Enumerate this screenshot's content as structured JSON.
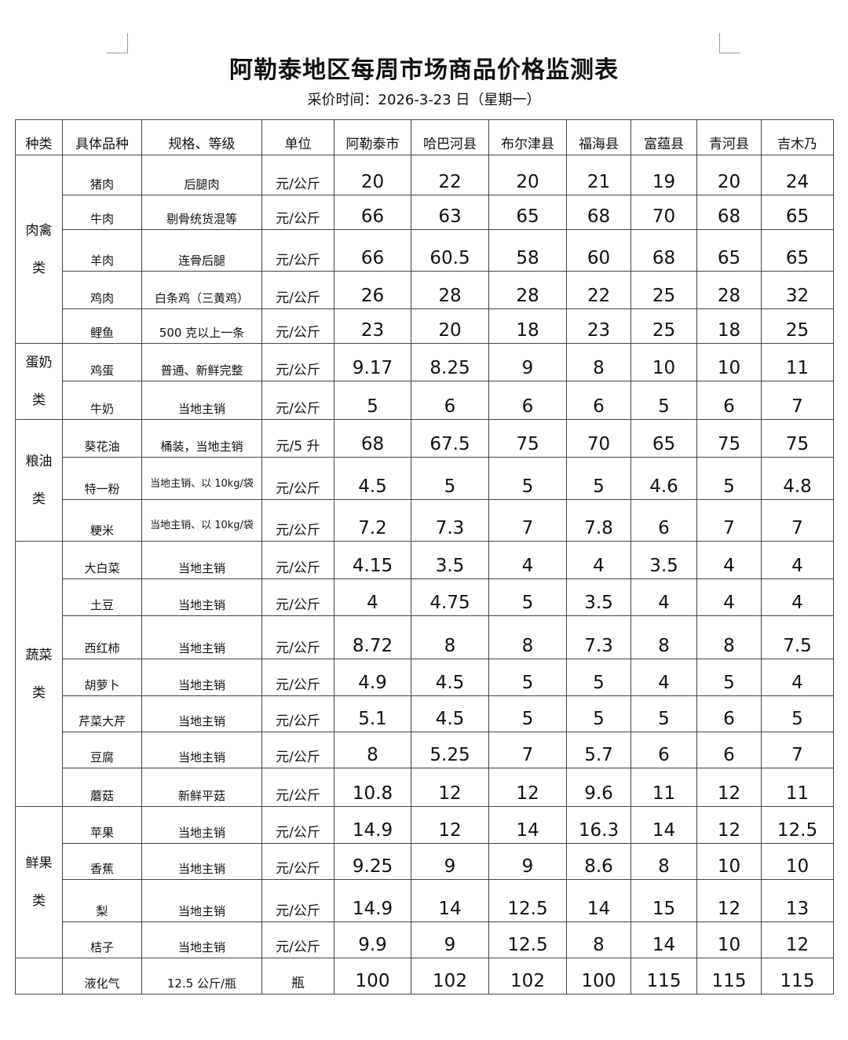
{
  "title": "阿勒泰地区每周市场商品价格监测表",
  "subtitle": "采价时间：2026-3-23 日（星期一）",
  "headers": [
    "种类",
    "具体品种",
    "规格、等级",
    "单位",
    "阿勒泰市",
    "哈巴河县",
    "布尔津县",
    "福海县",
    "富蕴县",
    "青河县",
    "吉木乃"
  ],
  "categories": [
    {
      "label": "肉禽类",
      "rows": [
        {
          "item": "猪肉",
          "spec": "后腿肉",
          "unit": "元/公斤",
          "prices": [
            "20",
            "22",
            "20",
            "21",
            "19",
            "20",
            "24"
          ]
        },
        {
          "item": "牛肉",
          "spec": "剔骨统货混等",
          "unit": "元/公斤",
          "prices": [
            "66",
            "63",
            "65",
            "68",
            "70",
            "68",
            "65"
          ]
        },
        {
          "item": "羊肉",
          "spec": "连骨后腿",
          "unit": "元/公斤",
          "prices": [
            "66",
            "60.5",
            "58",
            "60",
            "68",
            "65",
            "65"
          ]
        },
        {
          "item": "鸡肉",
          "spec": "白条鸡（三黄鸡）",
          "unit": "元/公斤",
          "prices": [
            "26",
            "28",
            "28",
            "22",
            "25",
            "28",
            "32"
          ]
        },
        {
          "item": "鲤鱼",
          "spec": "500 克以上一条",
          "unit": "元/公斤",
          "prices": [
            "23",
            "20",
            "18",
            "23",
            "25",
            "18",
            "25"
          ]
        }
      ]
    },
    {
      "label": "蛋奶类",
      "rows": [
        {
          "item": "鸡蛋",
          "spec": "普通、新鲜完整",
          "unit": "元/公斤",
          "prices": [
            "9.17",
            "8.25",
            "9",
            "8",
            "10",
            "10",
            "11"
          ]
        },
        {
          "item": "牛奶",
          "spec": "当地主销",
          "unit": "元/公斤",
          "prices": [
            "5",
            "6",
            "6",
            "6",
            "5",
            "6",
            "7"
          ]
        }
      ]
    },
    {
      "label": "粮油类",
      "rows": [
        {
          "item": "葵花油",
          "spec": "桶装，当地主销",
          "unit": "元/5 升",
          "prices": [
            "68",
            "67.5",
            "75",
            "70",
            "65",
            "75",
            "75"
          ]
        },
        {
          "item": "特一粉",
          "spec": "当地主销、以 10kg/袋",
          "unit": "元/公斤",
          "prices": [
            "4.5",
            "5",
            "5",
            "5",
            "4.6",
            "5",
            "4.8"
          ]
        },
        {
          "item": "粳米",
          "spec": "当地主销、以 10kg/袋",
          "unit": "元/公斤",
          "prices": [
            "7.2",
            "7.3",
            "7",
            "7.8",
            "6",
            "7",
            "7"
          ]
        }
      ]
    },
    {
      "label": "蔬菜类",
      "rows": [
        {
          "item": "大白菜",
          "spec": "当地主销",
          "unit": "元/公斤",
          "prices": [
            "4.15",
            "3.5",
            "4",
            "4",
            "3.5",
            "4",
            "4"
          ]
        },
        {
          "item": "土豆",
          "spec": "当地主销",
          "unit": "元/公斤",
          "prices": [
            "4",
            "4.75",
            "5",
            "3.5",
            "4",
            "4",
            "4"
          ]
        },
        {
          "item": "西红柿",
          "spec": "当地主销",
          "unit": "元/公斤",
          "prices": [
            "8.72",
            "8",
            "8",
            "7.3",
            "8",
            "8",
            "7.5"
          ]
        },
        {
          "item": "胡萝卜",
          "spec": "当地主销",
          "unit": "元/公斤",
          "prices": [
            "4.9",
            "4.5",
            "5",
            "5",
            "4",
            "5",
            "4"
          ]
        },
        {
          "item": "芹菜大芹",
          "spec": "当地主销",
          "unit": "元/公斤",
          "prices": [
            "5.1",
            "4.5",
            "5",
            "5",
            "5",
            "6",
            "5"
          ]
        },
        {
          "item": "豆腐",
          "spec": "当地主销",
          "unit": "元/公斤",
          "prices": [
            "8",
            "5.25",
            "7",
            "5.7",
            "6",
            "6",
            "7"
          ]
        },
        {
          "item": "蘑菇",
          "spec": "新鲜平菇",
          "unit": "元/公斤",
          "prices": [
            "10.8",
            "12",
            "12",
            "9.6",
            "11",
            "12",
            "11"
          ]
        }
      ]
    },
    {
      "label": "鲜果类",
      "rows": [
        {
          "item": "苹果",
          "spec": "当地主销",
          "unit": "元/公斤",
          "prices": [
            "14.9",
            "12",
            "14",
            "16.3",
            "14",
            "12",
            "12.5"
          ]
        },
        {
          "item": "香蕉",
          "spec": "当地主销",
          "unit": "元/公斤",
          "prices": [
            "9.25",
            "9",
            "9",
            "8.6",
            "8",
            "10",
            "10"
          ]
        },
        {
          "item": "梨",
          "spec": "当地主销",
          "unit": "元/公斤",
          "prices": [
            "14.9",
            "14",
            "12.5",
            "14",
            "15",
            "12",
            "13"
          ]
        },
        {
          "item": "桔子",
          "spec": "当地主销",
          "unit": "元/公斤",
          "prices": [
            "9.9",
            "9",
            "12.5",
            "8",
            "14",
            "10",
            "12"
          ]
        }
      ]
    },
    {
      "label": "",
      "rows": [
        {
          "item": "液化气",
          "spec": "12.5 公斤/瓶",
          "unit": "瓶",
          "prices": [
            "100",
            "102",
            "102",
            "100",
            "115",
            "115",
            "115"
          ]
        }
      ]
    }
  ]
}
